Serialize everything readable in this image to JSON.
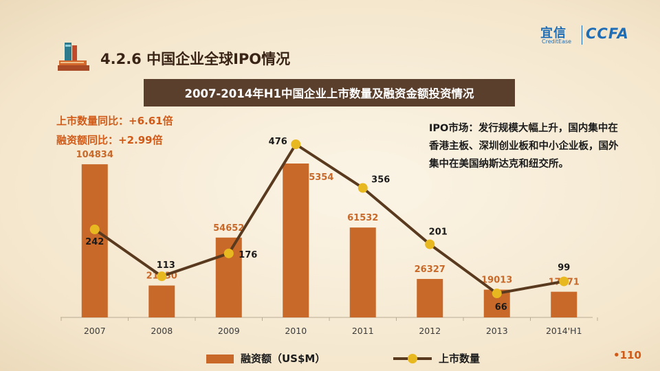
{
  "header": {
    "section_title": "4.2.6 中国企业全球IPO情况",
    "logo_cn": "宜信",
    "logo_en": "CreditEase",
    "logo_ccfa": "CCFA"
  },
  "banner_title": "2007-2014年H1中国企业上市数量及融资金额投资情况",
  "yoy": {
    "listing": "上市数量同比：+6.61倍",
    "financing": "融资额同比：+2.99倍"
  },
  "annotation": "IPO市场：发行规模大幅上升，国内集中在香港主板、深圳创业板和中小企业板，国外集中在美国纳斯达克和纽交所。",
  "chart_data": {
    "type": "bar+line",
    "categories": [
      "2007",
      "2008",
      "2009",
      "2010",
      "2011",
      "2012",
      "2013",
      "2014'H1"
    ],
    "series": [
      {
        "name": "融资额（US$M）",
        "type": "bar",
        "values": [
          104834,
          21830,
          54652,
          105354,
          61532,
          26327,
          19013,
          17571
        ],
        "color": "#c8692a"
      },
      {
        "name": "上市数量",
        "type": "line",
        "values": [
          242,
          113,
          176,
          476,
          356,
          201,
          66,
          99
        ],
        "color": "#5a3a1e",
        "marker_color": "#e8b820"
      }
    ],
    "bar_ylim": [
      0,
      120000
    ],
    "line_ylim": [
      0,
      500
    ],
    "legend_position": "bottom",
    "grid": false
  },
  "page_number": "•110"
}
